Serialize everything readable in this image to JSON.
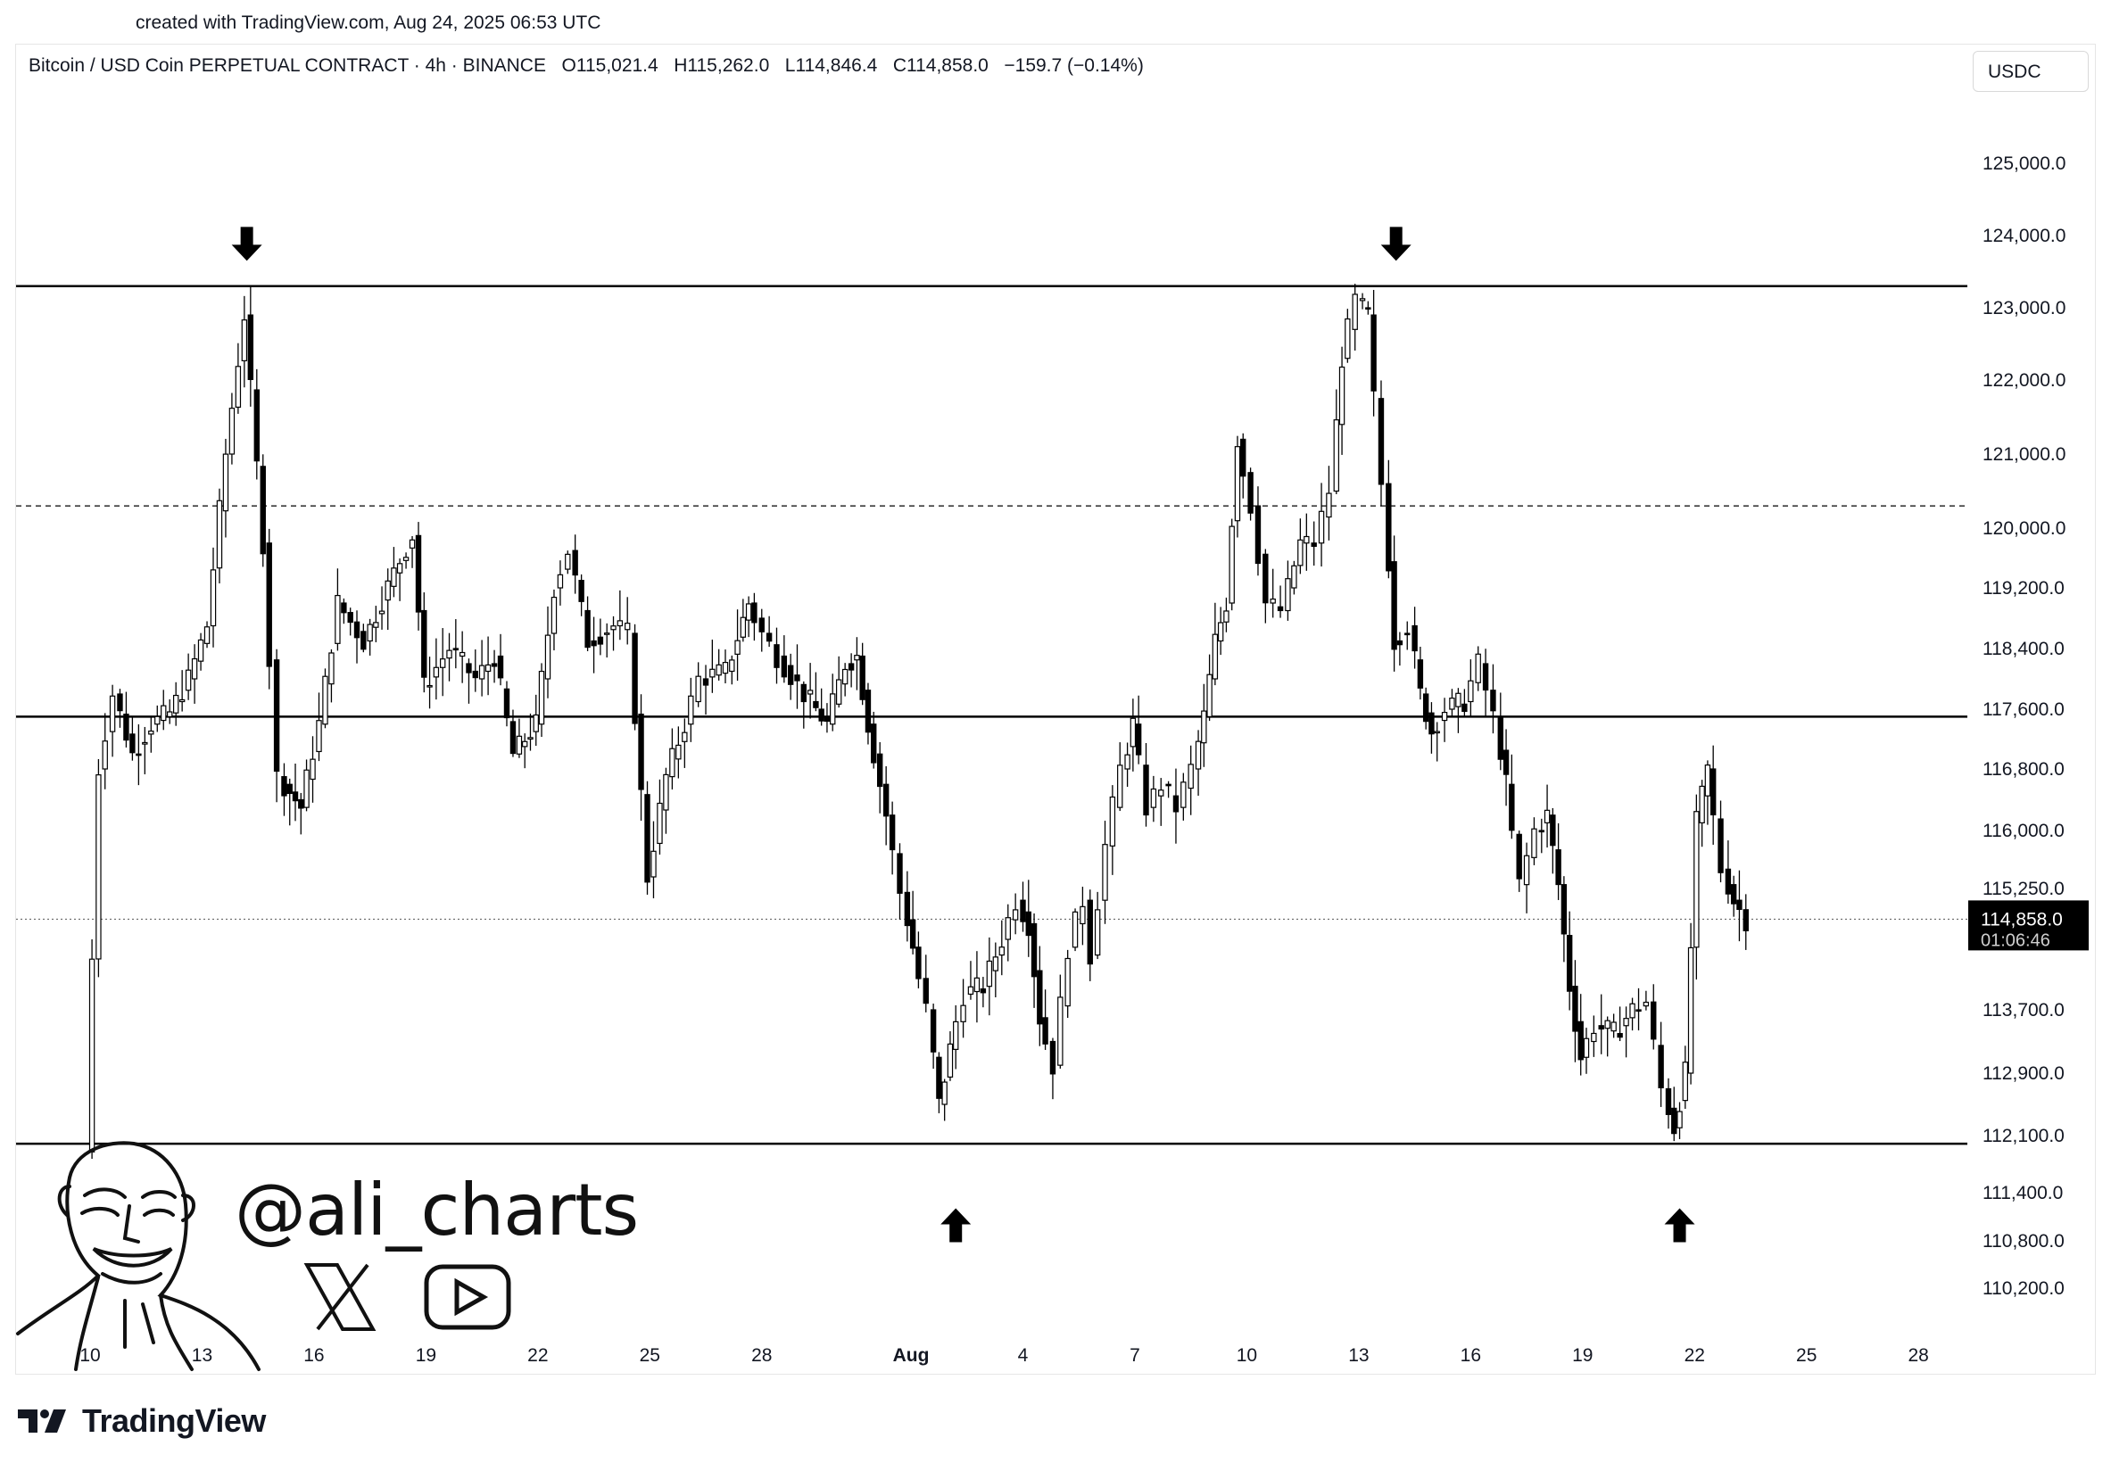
{
  "created_text": "created with TradingView.com, Aug 24, 2025 06:53 UTC",
  "header": {
    "symbol": "Bitcoin / USD Coin PERPETUAL CONTRACT · 4h · BINANCE",
    "open": "O115,021.4",
    "high": "H115,262.0",
    "low": "L114,846.4",
    "close": "C114,858.0",
    "change": "−159.7 (−0.14%)"
  },
  "currency": "USDC",
  "brand": "TradingView",
  "watermark": {
    "handle": "@ali_charts",
    "icons": [
      "x-logo-icon",
      "youtube-icon",
      "avatar-sketch"
    ]
  },
  "colors": {
    "candle": "#000000",
    "line": "#000000",
    "price_box": "#000000",
    "price_text": "#ffffff"
  },
  "chart_data": {
    "type": "candlestick",
    "interval": "4h",
    "y_ticks": [
      "125,000.0",
      "124,000.0",
      "123,000.0",
      "122,000.0",
      "121,000.0",
      "120,000.0",
      "119,200.0",
      "118,400.0",
      "117,600.0",
      "116,800.0",
      "116,000.0",
      "115,250.0",
      "113,700.0",
      "112,900.0",
      "112,100.0",
      "111,400.0",
      "110,800.0",
      "110,200.0"
    ],
    "x_ticks": [
      {
        "label": "10",
        "day": 10
      },
      {
        "label": "13",
        "day": 13
      },
      {
        "label": "16",
        "day": 16
      },
      {
        "label": "19",
        "day": 19
      },
      {
        "label": "22",
        "day": 22
      },
      {
        "label": "25",
        "day": 25
      },
      {
        "label": "28",
        "day": 28
      },
      {
        "label": "Aug",
        "day": 32
      },
      {
        "label": "4",
        "day": 35
      },
      {
        "label": "7",
        "day": 38
      },
      {
        "label": "10",
        "day": 41
      },
      {
        "label": "13",
        "day": 44
      },
      {
        "label": "16",
        "day": 47
      },
      {
        "label": "19",
        "day": 50
      },
      {
        "label": "22",
        "day": 53
      },
      {
        "label": "25",
        "day": 56
      },
      {
        "label": "28",
        "day": 59
      }
    ],
    "horizontal_levels": [
      {
        "price": 123300,
        "style": "solid"
      },
      {
        "price": 120300,
        "style": "dashed"
      },
      {
        "price": 117500,
        "style": "solid"
      },
      {
        "price": 112000,
        "style": "solid"
      }
    ],
    "arrows": [
      {
        "day": 14.2,
        "price": 123600,
        "direction": "down"
      },
      {
        "day": 45.0,
        "price": 123600,
        "direction": "down"
      },
      {
        "day": 33.2,
        "price": 111250,
        "direction": "up"
      },
      {
        "day": 52.6,
        "price": 111250,
        "direction": "up"
      }
    ],
    "last_price": {
      "value": "114,858.0",
      "countdown": "01:06:46",
      "price": 114858
    },
    "anchors": [
      [
        10.05,
        111900
      ],
      [
        10.4,
        116800
      ],
      [
        10.8,
        117800
      ],
      [
        11.3,
        117000
      ],
      [
        11.8,
        117400
      ],
      [
        12.3,
        117550
      ],
      [
        12.8,
        118000
      ],
      [
        13.3,
        118700
      ],
      [
        13.8,
        121000
      ],
      [
        14.3,
        122900
      ],
      [
        14.8,
        119800
      ],
      [
        15.2,
        116700
      ],
      [
        15.8,
        116300
      ],
      [
        16.3,
        117400
      ],
      [
        16.8,
        119000
      ],
      [
        17.5,
        118500
      ],
      [
        18.3,
        119400
      ],
      [
        18.8,
        119900
      ],
      [
        19.1,
        117900
      ],
      [
        19.8,
        118400
      ],
      [
        20.5,
        118000
      ],
      [
        21.0,
        118300
      ],
      [
        21.5,
        117000
      ],
      [
        22.1,
        117400
      ],
      [
        22.6,
        119200
      ],
      [
        23.0,
        119700
      ],
      [
        23.5,
        118500
      ],
      [
        24.2,
        118700
      ],
      [
        24.6,
        118600
      ],
      [
        25.1,
        115400
      ],
      [
        25.6,
        116700
      ],
      [
        26.1,
        117400
      ],
      [
        26.5,
        118000
      ],
      [
        27.2,
        118100
      ],
      [
        27.8,
        119000
      ],
      [
        28.2,
        118600
      ],
      [
        28.6,
        118300
      ],
      [
        29.3,
        117800
      ],
      [
        29.9,
        117400
      ],
      [
        30.4,
        118200
      ],
      [
        30.7,
        118300
      ],
      [
        31.0,
        117400
      ],
      [
        31.5,
        116200
      ],
      [
        31.9,
        115200
      ],
      [
        32.2,
        114500
      ],
      [
        32.6,
        113700
      ],
      [
        32.9,
        112500
      ],
      [
        33.2,
        113200
      ],
      [
        33.6,
        113900
      ],
      [
        34.1,
        114000
      ],
      [
        34.6,
        114600
      ],
      [
        35.0,
        115100
      ],
      [
        35.3,
        114800
      ],
      [
        35.6,
        113600
      ],
      [
        36.0,
        113000
      ],
      [
        36.4,
        114500
      ],
      [
        36.8,
        115100
      ],
      [
        37.0,
        114400
      ],
      [
        37.4,
        115800
      ],
      [
        37.8,
        116800
      ],
      [
        38.1,
        117400
      ],
      [
        38.5,
        116300
      ],
      [
        38.9,
        116600
      ],
      [
        39.3,
        116300
      ],
      [
        39.7,
        116800
      ],
      [
        40.0,
        117500
      ],
      [
        40.3,
        118500
      ],
      [
        40.6,
        119000
      ],
      [
        40.9,
        121200
      ],
      [
        41.3,
        120300
      ],
      [
        41.7,
        119000
      ],
      [
        42.1,
        118900
      ],
      [
        42.6,
        119800
      ],
      [
        43.0,
        119800
      ],
      [
        43.4,
        120500
      ],
      [
        43.7,
        122300
      ],
      [
        44.1,
        123100
      ],
      [
        44.4,
        122900
      ],
      [
        44.8,
        120600
      ],
      [
        45.1,
        118500
      ],
      [
        45.5,
        118700
      ],
      [
        45.8,
        117800
      ],
      [
        46.1,
        117300
      ],
      [
        46.5,
        117600
      ],
      [
        47.0,
        117700
      ],
      [
        47.4,
        118200
      ],
      [
        47.8,
        117500
      ],
      [
        48.1,
        116600
      ],
      [
        48.5,
        115300
      ],
      [
        48.9,
        116000
      ],
      [
        49.2,
        116200
      ],
      [
        49.5,
        115300
      ],
      [
        49.8,
        114000
      ],
      [
        50.1,
        113100
      ],
      [
        50.5,
        113500
      ],
      [
        51.0,
        113400
      ],
      [
        51.5,
        113700
      ],
      [
        51.9,
        113800
      ],
      [
        52.3,
        112700
      ],
      [
        52.6,
        112200
      ],
      [
        52.9,
        112900
      ],
      [
        53.2,
        116100
      ],
      [
        53.5,
        116800
      ],
      [
        53.9,
        115500
      ],
      [
        54.2,
        115100
      ],
      [
        54.55,
        114858
      ]
    ]
  }
}
